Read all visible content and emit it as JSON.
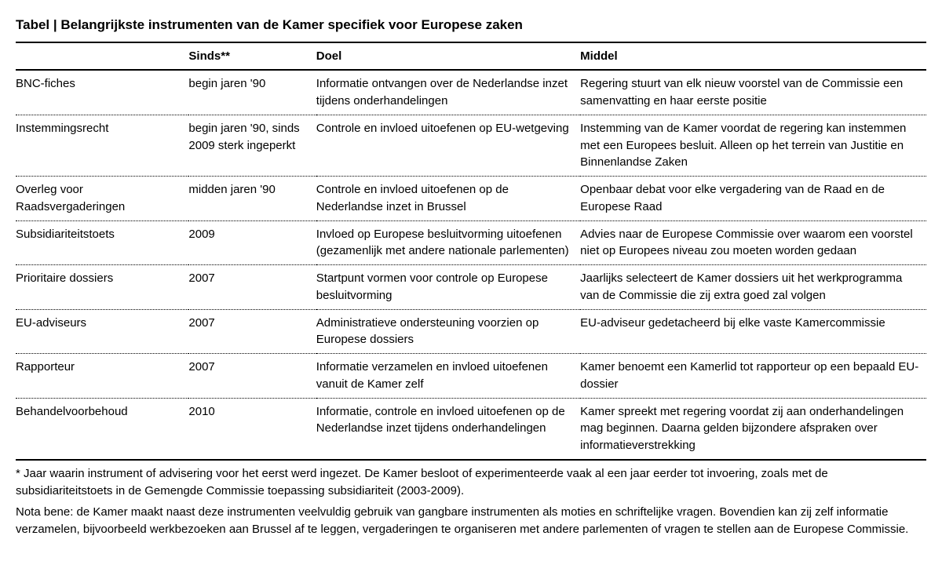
{
  "table": {
    "title": "Tabel | Belangrijkste instrumenten van de Kamer specifiek voor Europese zaken",
    "columns": {
      "name": "",
      "since": "Sinds**",
      "doel": "Doel",
      "middel": "Middel"
    },
    "rows": [
      {
        "name": "BNC-fiches",
        "since": "begin jaren '90",
        "doel": "Informatie ontvangen over de Nederlandse inzet tijdens onderhandelingen",
        "middel": "Regering stuurt van elk nieuw voorstel van de Commissie een samenvatting en haar eerste positie"
      },
      {
        "name": "Instemmingsrecht",
        "since": "begin jaren '90, sinds 2009 sterk ingeperkt",
        "doel": "Controle en invloed uitoefenen op EU-wetgeving",
        "middel": "Instemming van de Kamer voordat de regering kan instemmen met een Europees besluit. Alleen op het terrein van Justitie en Binnenlandse Zaken"
      },
      {
        "name": "Overleg voor Raadsvergaderingen",
        "since": "midden jaren '90",
        "doel": "Controle en invloed uitoefenen op de Nederlandse inzet in Brussel",
        "middel": "Openbaar debat voor elke vergadering van de Raad en de Europese Raad"
      },
      {
        "name": "Subsidiariteitstoets",
        "since": "2009",
        "doel": "Invloed op Europese besluitvorming uitoefenen (gezamenlijk met andere nationale parlementen)",
        "middel": "Advies naar de Europese Commissie over waarom een voorstel niet op Europees niveau zou moeten worden gedaan"
      },
      {
        "name": "Prioritaire dossiers",
        "since": "2007",
        "doel": "Startpunt vormen voor controle op Europese besluitvorming",
        "middel": "Jaarlijks selecteert de Kamer dossiers uit het werkprogramma van de Commissie die zij extra goed zal volgen"
      },
      {
        "name": "EU-adviseurs",
        "since": "2007",
        "doel": "Administratieve ondersteuning voorzien op Europese dossiers",
        "middel": "EU-adviseur gedetacheerd bij elke vaste Kamercommissie"
      },
      {
        "name": "Rapporteur",
        "since": "2007",
        "doel": "Informatie verzamelen en invloed uitoefenen vanuit de Kamer zelf",
        "middel": "Kamer benoemt een Kamerlid tot rapporteur op een bepaald EU-dossier"
      },
      {
        "name": "Behandelvoorbehoud",
        "since": "2010",
        "doel": "Informatie, controle en invloed uitoefenen op de Nederlandse inzet tijdens onderhandelingen",
        "middel": "Kamer spreekt met regering voordat zij aan onderhandelingen mag beginnen. Daarna gelden bijzondere afspraken over informatieverstrekking"
      }
    ],
    "footnote1": "* Jaar waarin instrument of advisering voor het eerst werd ingezet. De Kamer besloot of experimenteerde vaak al een jaar eerder tot invoering, zoals met de subsidiariteitstoets in de Gemengde Commissie toepassing subsidiariteit (2003-2009).",
    "footnote2": "Nota bene: de Kamer maakt naast deze instrumenten veelvuldig gebruik van gangbare instrumenten als moties en schriftelijke vragen. Bovendien kan zij zelf informatie verzamelen, bijvoorbeeld werkbezoeken aan Brussel af te leggen, vergaderingen te organiseren met andere parlementen of vragen te stellen aan de Europese Commissie."
  },
  "style": {
    "background_color": "#ffffff",
    "text_color": "#000000",
    "rule_color": "#000000",
    "dotted_color": "#000000",
    "title_fontsize": 17,
    "body_fontsize": 15,
    "col_widths": {
      "name": "19%",
      "since": "14%",
      "doel": "29%",
      "middel": "38%"
    }
  }
}
